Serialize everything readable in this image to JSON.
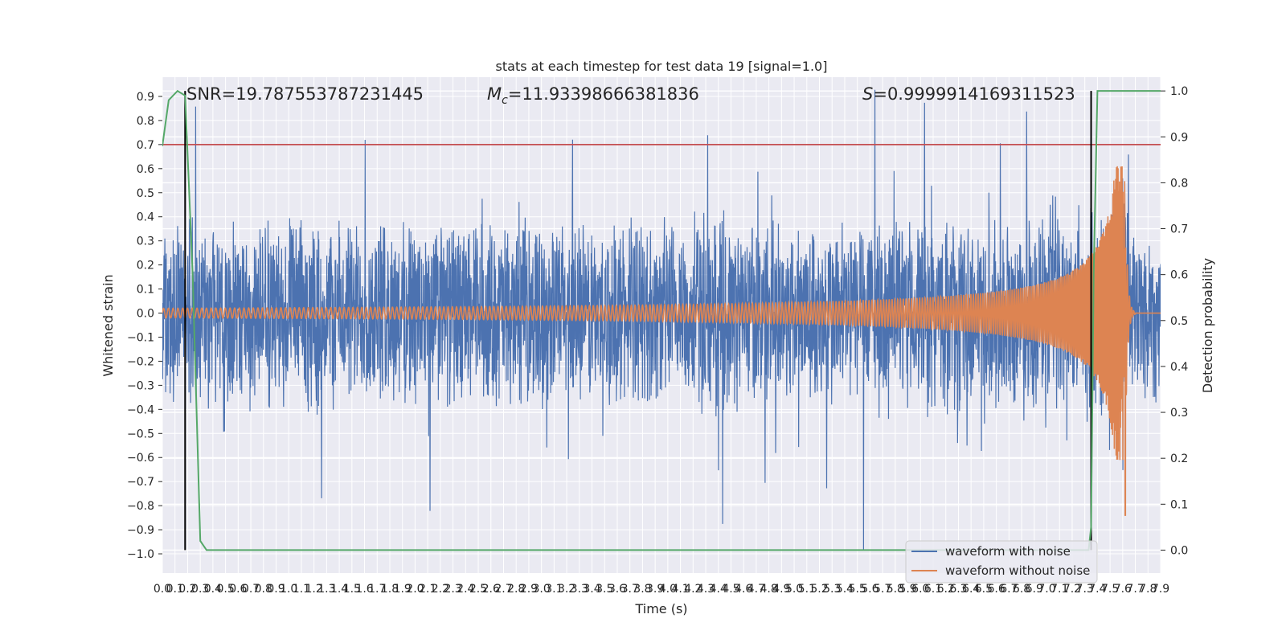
{
  "chart_data": {
    "type": "line",
    "title": "stats at each timestep for test data 19 [signal=1.0]",
    "xlabel": "Time (s)",
    "ylabel_left": "Whitened strain",
    "ylabel_right": "Detection probability",
    "xlim": [
      0.0,
      7.9
    ],
    "ylim_left": [
      -1.08,
      0.98
    ],
    "ylim_right": [
      -0.05,
      1.03
    ],
    "grid": true,
    "legend_position": "lower right",
    "x_ticks": [
      "0.0",
      "0.1",
      "0.2",
      "0.3",
      "0.4",
      "0.5",
      "0.6",
      "0.7",
      "0.8",
      "0.9",
      "1.0",
      "1.1",
      "1.2",
      "1.3",
      "1.4",
      "1.5",
      "1.6",
      "1.7",
      "1.8",
      "1.9",
      "2.0",
      "2.1",
      "2.2",
      "2.3",
      "2.4",
      "2.5",
      "2.6",
      "2.7",
      "2.8",
      "2.9",
      "3.0",
      "3.1",
      "3.2",
      "3.3",
      "3.4",
      "3.5",
      "3.6",
      "3.7",
      "3.8",
      "3.9",
      "4.0",
      "4.1",
      "4.2",
      "4.3",
      "4.4",
      "4.5",
      "4.6",
      "4.7",
      "4.8",
      "4.9",
      "5.0",
      "5.1",
      "5.2",
      "5.3",
      "5.4",
      "5.5",
      "5.6",
      "5.7",
      "5.8",
      "5.9",
      "6.0",
      "6.1",
      "6.2",
      "6.3",
      "6.4",
      "6.5",
      "6.6",
      "6.7",
      "6.8",
      "6.9",
      "7.0",
      "7.1",
      "7.2",
      "7.3",
      "7.4",
      "7.5",
      "7.6",
      "7.7",
      "7.8",
      "7.9"
    ],
    "y_ticks_left": [
      "−1.0",
      "−0.9",
      "−0.8",
      "−0.7",
      "−0.6",
      "−0.5",
      "−0.4",
      "−0.3",
      "−0.2",
      "−0.1",
      "0.0",
      "0.1",
      "0.2",
      "0.3",
      "0.4",
      "0.5",
      "0.6",
      "0.7",
      "0.8",
      "0.9"
    ],
    "y_ticks_right": [
      "0.0",
      "0.1",
      "0.2",
      "0.3",
      "0.4",
      "0.5",
      "0.6",
      "0.7",
      "0.8",
      "0.9",
      "1.0"
    ],
    "annotations": {
      "snr": "SNR=19.787553787231445",
      "mc_symbol": "M",
      "mc_sub": "c",
      "mc_value": "=11.93398666381836",
      "s_symbol": "S",
      "s_value": "=0.9999914169311523"
    },
    "threshold_line": {
      "y_left": 0.7,
      "color": "#c44e52"
    },
    "vertical_markers_x": [
      0.18,
      7.35
    ],
    "series": [
      {
        "name": "waveform with noise",
        "color": "#4c72b0",
        "typical_amplitude": 0.35,
        "spike_peaks": [
          0.86,
          0.72,
          0.79,
          0.9,
          0.74,
          0.86,
          0.72,
          0.73,
          0.72,
          -0.87,
          -0.82,
          -0.78,
          -0.75,
          -0.71,
          -1.0
        ]
      },
      {
        "name": "waveform without noise",
        "color": "#dd8452",
        "chirp_start_amplitude": 0.02,
        "peak_amplitude": 0.61,
        "merger_time": 7.62,
        "min_value": -0.84
      },
      {
        "color": "#55a868",
        "axis": "right",
        "x": [
          0.0,
          0.05,
          0.12,
          0.18,
          0.24,
          0.3,
          0.35,
          0.4,
          7.33,
          7.35,
          7.37,
          7.4,
          7.45,
          7.9
        ],
        "y": [
          0.88,
          0.98,
          1.0,
          0.99,
          0.6,
          0.02,
          0.0,
          0.0,
          0.0,
          0.05,
          0.6,
          1.0,
          1.0,
          1.0
        ]
      }
    ]
  }
}
